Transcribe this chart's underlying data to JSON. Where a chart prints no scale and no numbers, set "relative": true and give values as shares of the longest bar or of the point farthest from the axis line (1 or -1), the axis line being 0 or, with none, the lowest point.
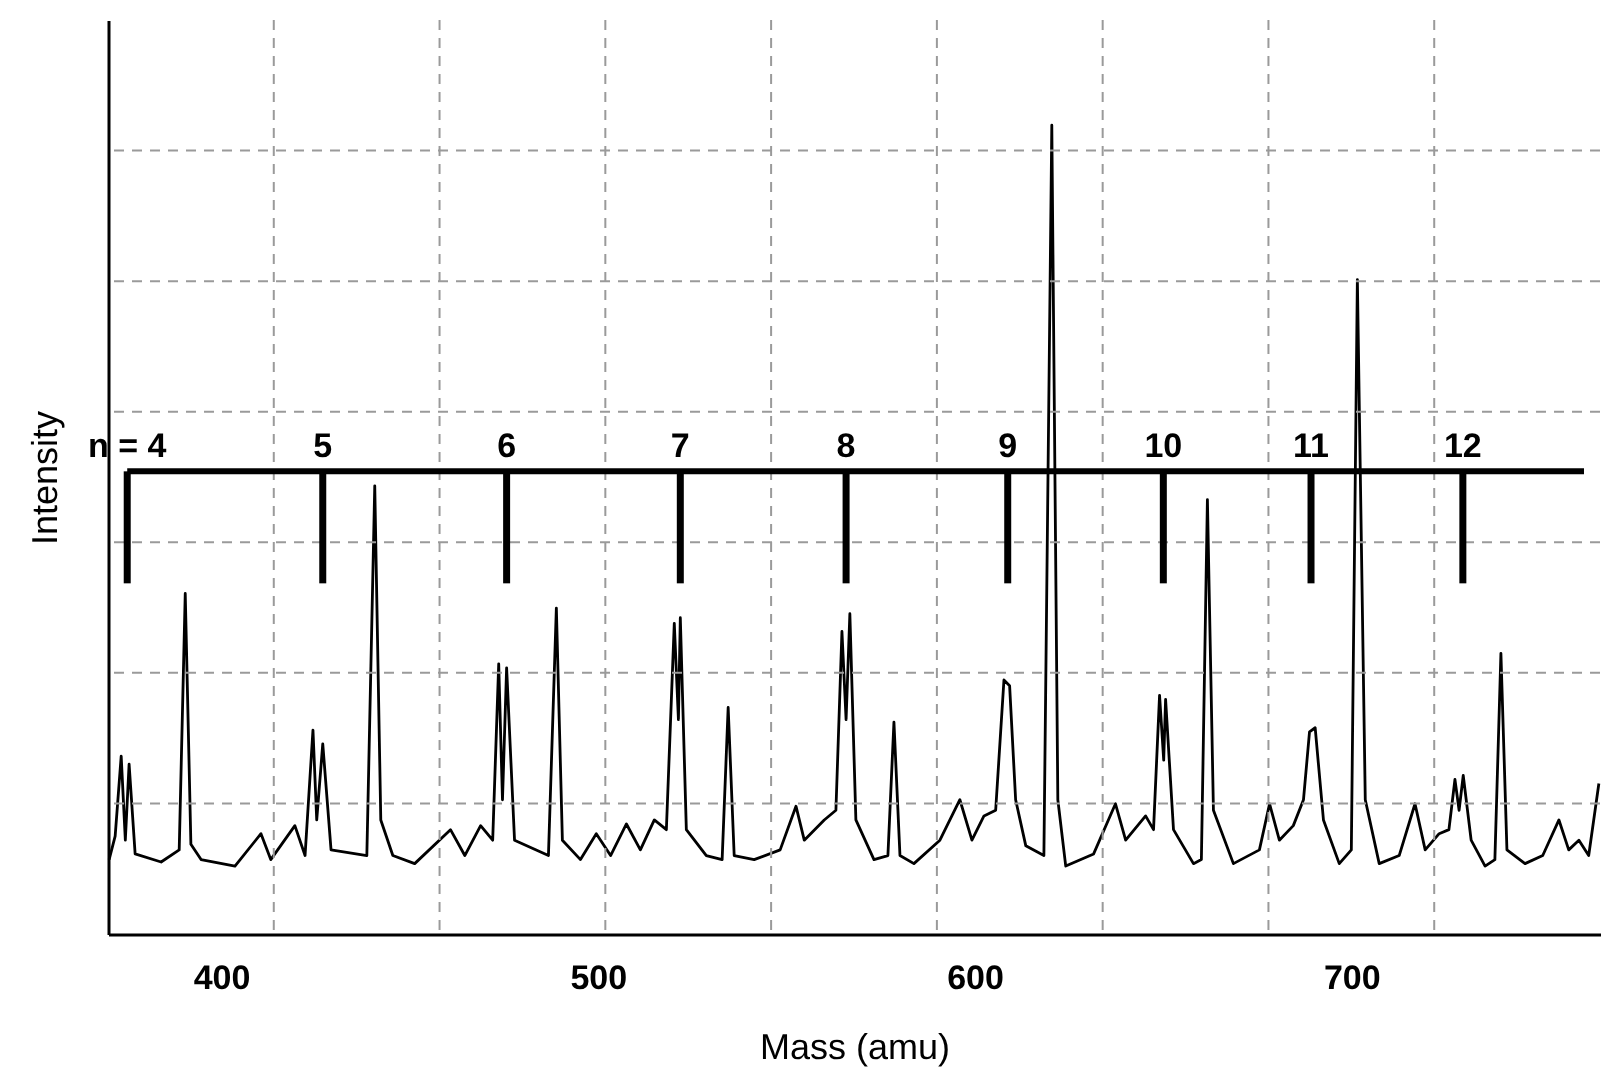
{
  "chart_data": {
    "type": "line",
    "relative": true,
    "xlabel": "Mass (amu)",
    "ylabel": "Intensity",
    "xlim": [
      370,
      766
    ],
    "xticks": [
      400,
      500,
      600,
      700
    ],
    "grid": true,
    "x": [
      370.3,
      371.9,
      373.5,
      374.6,
      375.6,
      377.2,
      384.1,
      388.9,
      390.5,
      392.0,
      394.7,
      403.7,
      410.6,
      413.2,
      419.6,
      422.3,
      424.4,
      425.4,
      427.0,
      429.2,
      438.7,
      440.8,
      442.4,
      445.6,
      451.4,
      460.9,
      464.7,
      468.9,
      472.1,
      473.7,
      474.7,
      475.8,
      477.9,
      486.9,
      489.0,
      490.6,
      495.4,
      499.6,
      503.4,
      507.6,
      511.3,
      515.0,
      518.2,
      520.3,
      521.4,
      521.9,
      523.5,
      528.8,
      533.0,
      534.6,
      536.2,
      541.5,
      548.4,
      552.6,
      554.8,
      560.1,
      563.2,
      564.8,
      565.9,
      566.9,
      568.5,
      573.3,
      577.0,
      578.6,
      580.2,
      583.9,
      590.8,
      596.1,
      599.3,
      602.5,
      605.6,
      607.8,
      609.3,
      610.9,
      613.6,
      618.4,
      620.5,
      622.1,
      624.2,
      631.6,
      637.4,
      640.1,
      645.4,
      647.5,
      649.1,
      650.2,
      650.7,
      652.8,
      658.1,
      660.2,
      661.8,
      663.4,
      668.7,
      675.6,
      678.3,
      680.9,
      684.6,
      687.3,
      688.9,
      690.4,
      692.6,
      696.8,
      700.0,
      701.6,
      703.7,
      707.4,
      712.7,
      716.9,
      719.6,
      723.3,
      725.9,
      727.5,
      728.6,
      729.7,
      731.8,
      735.5,
      738.1,
      739.7,
      741.3,
      746.1,
      750.8,
      755.1,
      757.7,
      760.4,
      763.0,
      765.7
    ],
    "series": [
      {
        "color": "#000000",
        "values": [
          0.092,
          0.121,
          0.22,
          0.116,
          0.21,
          0.099,
          0.089,
          0.104,
          0.421,
          0.111,
          0.092,
          0.084,
          0.124,
          0.092,
          0.134,
          0.097,
          0.252,
          0.141,
          0.235,
          0.104,
          0.097,
          0.554,
          0.141,
          0.097,
          0.087,
          0.129,
          0.097,
          0.134,
          0.116,
          0.334,
          0.166,
          0.329,
          0.116,
          0.097,
          0.403,
          0.116,
          0.092,
          0.124,
          0.097,
          0.136,
          0.104,
          0.141,
          0.129,
          0.384,
          0.265,
          0.391,
          0.129,
          0.097,
          0.092,
          0.28,
          0.097,
          0.092,
          0.104,
          0.158,
          0.116,
          0.141,
          0.153,
          0.374,
          0.265,
          0.396,
          0.141,
          0.092,
          0.097,
          0.262,
          0.097,
          0.087,
          0.116,
          0.166,
          0.116,
          0.146,
          0.153,
          0.314,
          0.307,
          0.166,
          0.109,
          0.097,
          1.0,
          0.166,
          0.084,
          0.099,
          0.161,
          0.116,
          0.146,
          0.129,
          0.295,
          0.215,
          0.29,
          0.129,
          0.087,
          0.092,
          0.537,
          0.153,
          0.087,
          0.104,
          0.161,
          0.116,
          0.134,
          0.166,
          0.25,
          0.255,
          0.141,
          0.087,
          0.104,
          0.809,
          0.166,
          0.087,
          0.097,
          0.161,
          0.104,
          0.124,
          0.129,
          0.191,
          0.153,
          0.196,
          0.116,
          0.084,
          0.092,
          0.347,
          0.104,
          0.087,
          0.097,
          0.141,
          0.104,
          0.116,
          0.097,
          0.186
        ]
      }
    ],
    "ref_lines": [
      {
        "axis": "y",
        "value": 0.572
      },
      {
        "axis": "x",
        "value": 375.1
      },
      {
        "axis": "x",
        "value": 427.0
      },
      {
        "axis": "x",
        "value": 475.8
      },
      {
        "axis": "x",
        "value": 521.9
      },
      {
        "axis": "x",
        "value": 565.9
      },
      {
        "axis": "x",
        "value": 608.8
      },
      {
        "axis": "x",
        "value": 650.1
      },
      {
        "axis": "x",
        "value": 689.3
      },
      {
        "axis": "x",
        "value": 729.6
      }
    ],
    "annotations": [
      "n = 4",
      "5",
      "6",
      "7",
      "8",
      "9",
      "10",
      "11",
      "12"
    ]
  }
}
